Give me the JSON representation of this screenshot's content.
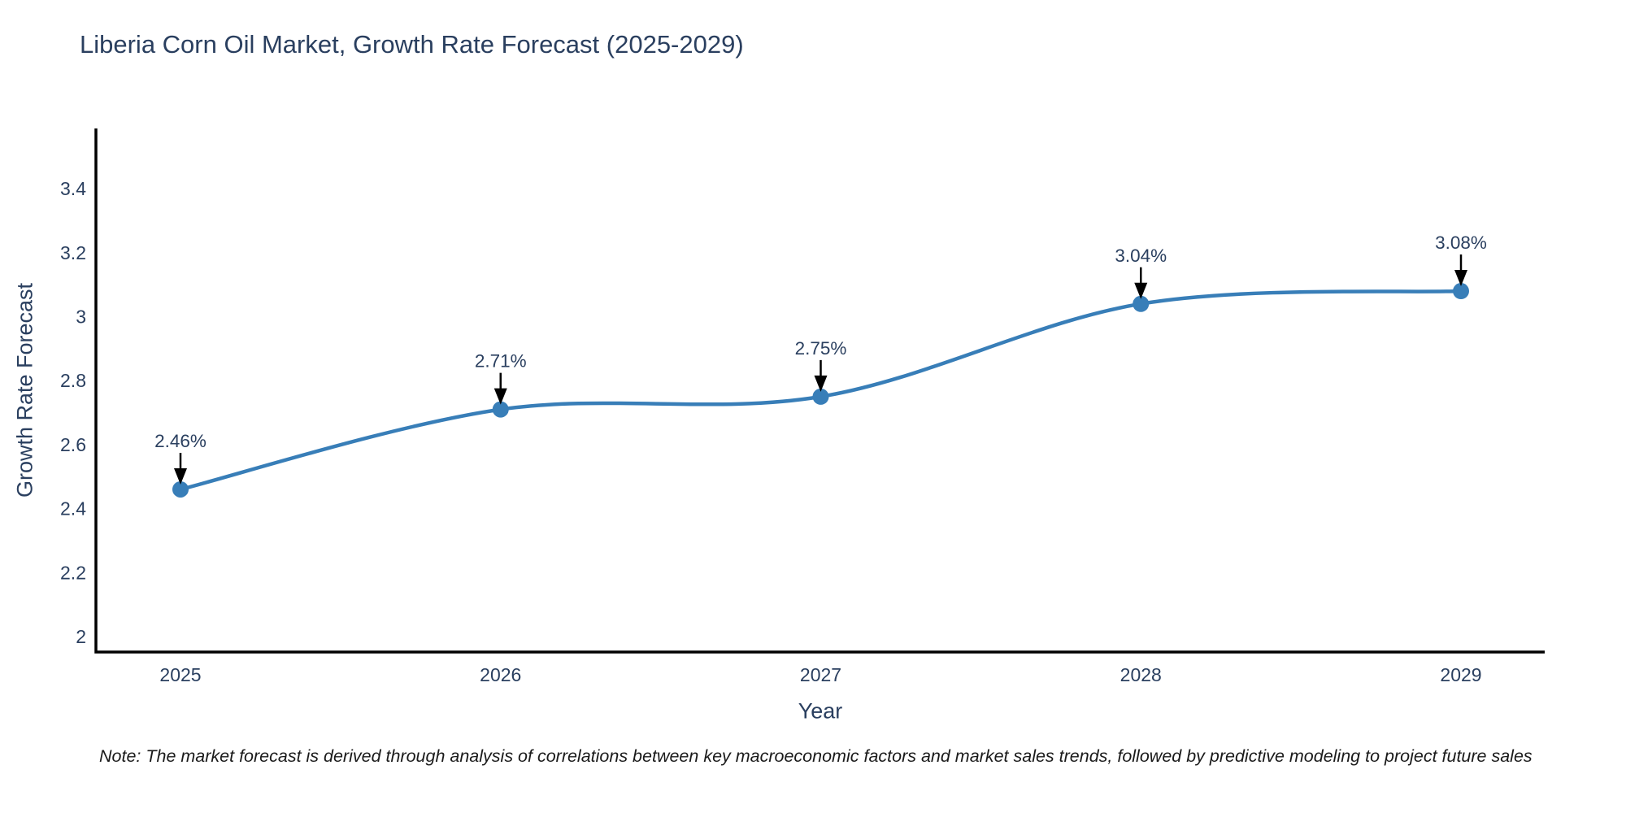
{
  "header": {
    "title": "Liberia Corn Oil Market, Growth Rate Forecast (2025-2029)"
  },
  "chart_data": {
    "type": "line",
    "line_shape": "spline",
    "title": "Liberia Corn Oil Market, Growth Rate Forecast (2025-2029)",
    "xlabel": "Year",
    "ylabel": "Growth Rate Forecast",
    "categories": [
      "2025",
      "2026",
      "2027",
      "2028",
      "2029"
    ],
    "series": [
      {
        "name": "Growth Rate Forecast",
        "values": [
          2.46,
          2.71,
          2.75,
          3.04,
          3.08
        ],
        "point_labels": [
          "2.46%",
          "2.71%",
          "2.75%",
          "3.04%",
          "3.08%"
        ]
      }
    ],
    "y_ticks": [
      {
        "value": 2,
        "label": "2"
      },
      {
        "value": 2.2,
        "label": "2.2"
      },
      {
        "value": 2.4,
        "label": "2.4"
      },
      {
        "value": 2.6,
        "label": "2.6"
      },
      {
        "value": 2.8,
        "label": "2.8"
      },
      {
        "value": 3,
        "label": "3"
      },
      {
        "value": 3.2,
        "label": "3.2"
      },
      {
        "value": 3.4,
        "label": "3.4"
      }
    ],
    "ylim": [
      1.95,
      3.59
    ],
    "grid": false,
    "legend": "none",
    "annotations_style": "value label with down arrow above each point",
    "colors": {
      "line": "#387eb8",
      "marker": "#387eb8",
      "axis_line": "#000000",
      "title_text": "#2a3f5f",
      "tick_text": "#2a3f5f",
      "axis_title_text": "#2a3f5f",
      "annotation_text": "#2a3f5f",
      "annotation_arrow": "#000000",
      "note_text": "#1a1a1a",
      "background": "#ffffff"
    }
  },
  "footnote": {
    "text": "Note: The market forecast is derived through analysis of correlations between key macroeconomic factors and market sales trends, followed by predictive modeling to project future sales"
  }
}
